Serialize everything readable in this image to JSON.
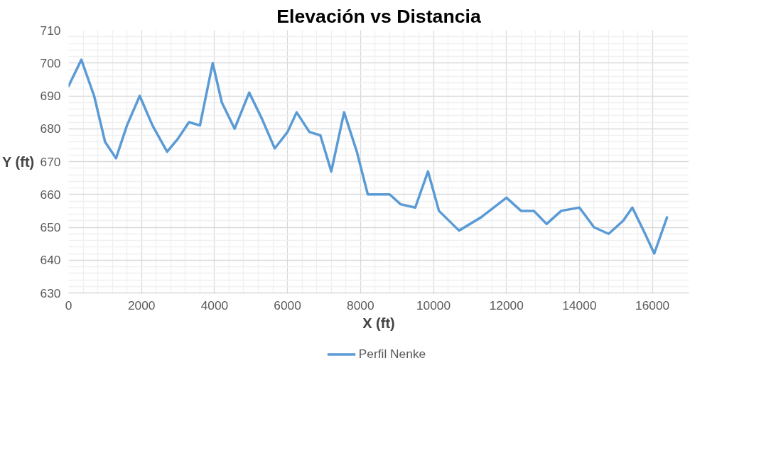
{
  "chart_data": {
    "type": "line",
    "title": "Elevación vs Distancia",
    "xlabel": "X (ft)",
    "ylabel": "Y (ft)",
    "xlim": [
      0,
      17000
    ],
    "xticks": [
      0,
      2000,
      4000,
      6000,
      8000,
      10000,
      12000,
      14000,
      16000
    ],
    "ylim": [
      630,
      710
    ],
    "yticks": [
      630,
      640,
      650,
      660,
      670,
      680,
      690,
      700,
      710
    ],
    "grid": true,
    "legend": "bottom",
    "marker": "none",
    "line_style": "solid",
    "series": [
      {
        "name": "Perfil Nenke",
        "color": "#5b9bd5",
        "x": [
          0,
          350,
          700,
          1000,
          1300,
          1600,
          1950,
          2300,
          2700,
          3000,
          3300,
          3600,
          3950,
          4200,
          4550,
          4950,
          5300,
          5650,
          6000,
          6250,
          6600,
          6900,
          7200,
          7550,
          7900,
          8200,
          8500,
          8800,
          9100,
          9500,
          9850,
          10150,
          10700,
          11300,
          12000,
          12400,
          12750,
          13100,
          13500,
          14000,
          14400,
          14800,
          15200,
          15450,
          15800,
          16050,
          16400
        ],
        "values": [
          693,
          701,
          690,
          676,
          671,
          681,
          690,
          681,
          673,
          677,
          682,
          681,
          700,
          688,
          680,
          691,
          683,
          674,
          679,
          685,
          679,
          678,
          667,
          685,
          673,
          660,
          660,
          660,
          657,
          656,
          667,
          655,
          649,
          653,
          659,
          655,
          655,
          651,
          655,
          656,
          650,
          648,
          652,
          656,
          648,
          642,
          653
        ]
      }
    ]
  }
}
